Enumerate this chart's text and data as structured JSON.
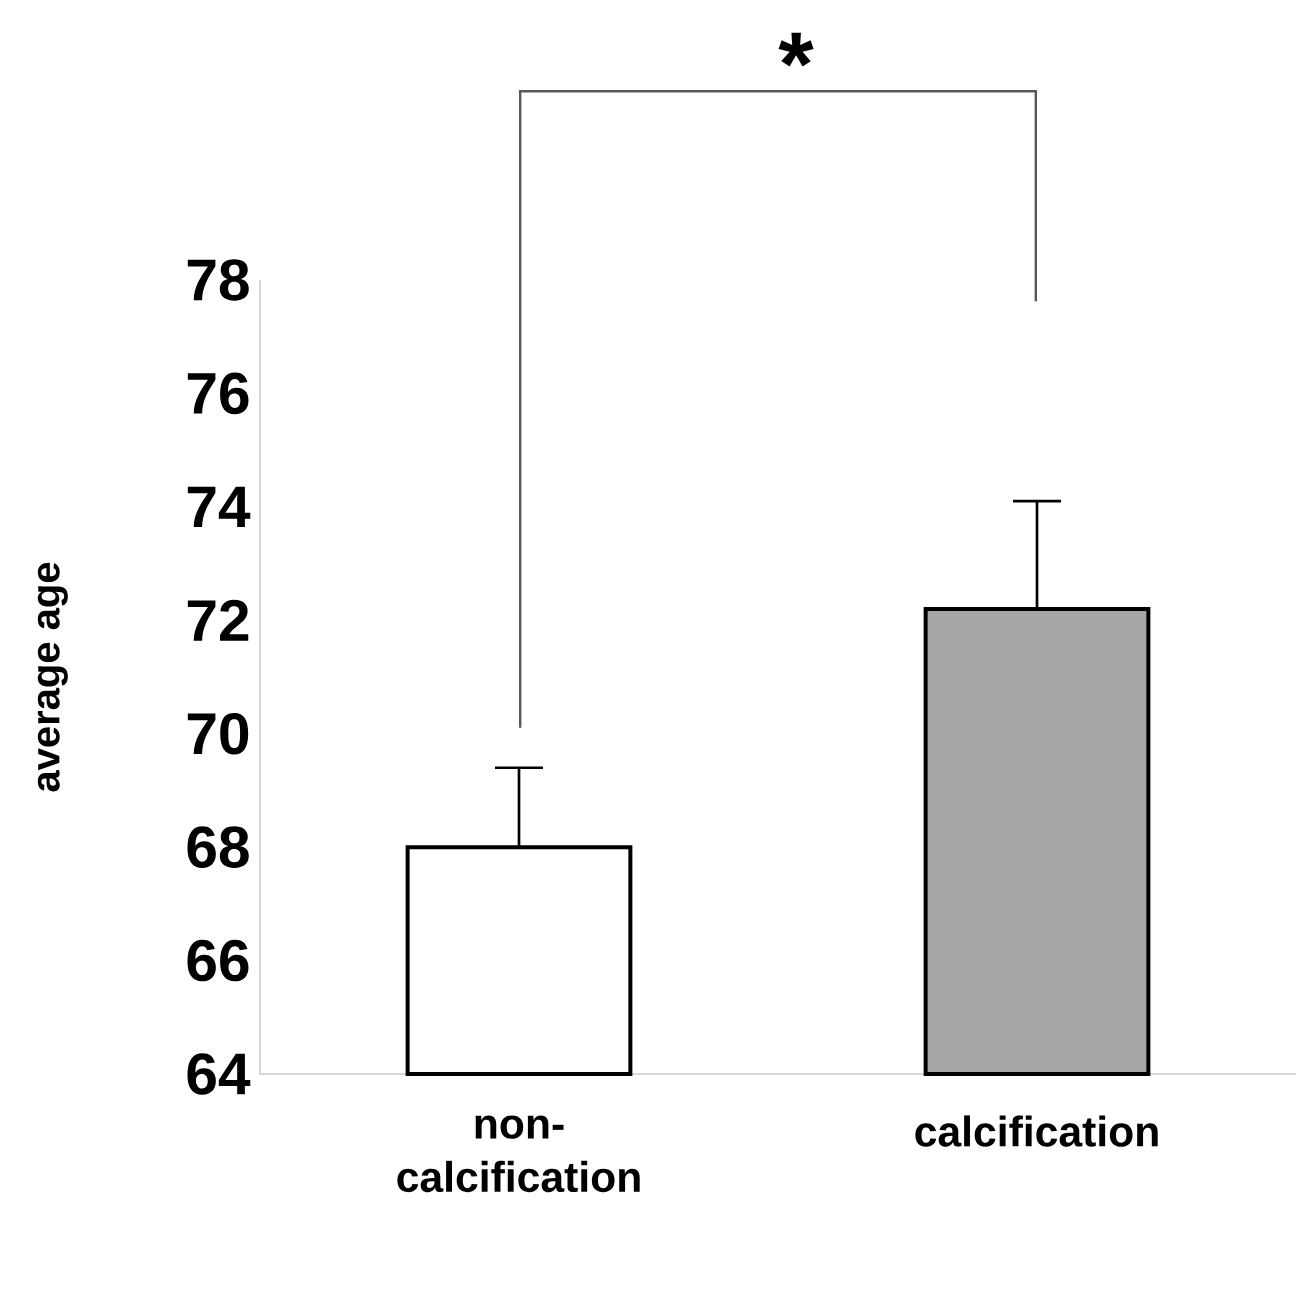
{
  "chart_data": {
    "type": "bar",
    "ylabel": "average age",
    "categories": [
      "non-calcification",
      "calcification"
    ],
    "values": [
      68,
      72.2
    ],
    "colors": [
      "#ffffff",
      "#a6a6a6"
    ],
    "errors": [
      [
        68,
        69.4
      ],
      [
        72.2,
        74.1
      ]
    ],
    "ylim": [
      64,
      78
    ],
    "yticks": [
      64,
      66,
      68,
      70,
      72,
      74,
      76,
      78
    ],
    "grid": false,
    "annotations": [
      "*"
    ]
  }
}
